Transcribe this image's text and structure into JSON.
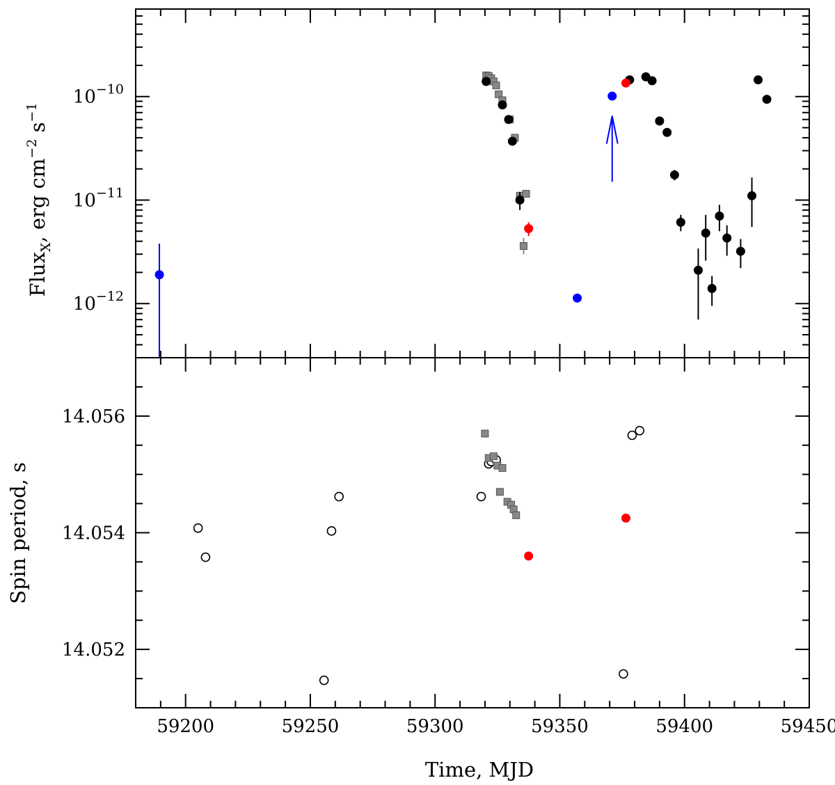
{
  "chart_data": {
    "type": "scatter",
    "x_axis": {
      "label": "Time, MJD",
      "range": [
        59180,
        59450
      ],
      "ticks": [
        59200,
        59250,
        59300,
        59350,
        59400,
        59450
      ],
      "tick_labels": [
        "59200",
        "59250",
        "59300",
        "59350",
        "59400",
        "59450"
      ]
    },
    "panels": [
      {
        "id": "flux",
        "ylabel": {
          "main": "Flux",
          "sub": "X",
          "rest": ", erg cm",
          "sup1": "−2",
          "mid": " s",
          "sup2": "−1"
        },
        "y_scale": "log",
        "y_range": [
          3e-13,
          7e-10
        ],
        "y_ticks": [
          1e-12,
          1e-11,
          1e-10
        ],
        "y_tick_labels": [
          {
            "base": "10",
            "exp": "−12"
          },
          {
            "base": "10",
            "exp": "−11"
          },
          {
            "base": "10",
            "exp": "−10"
          }
        ],
        "series": [
          {
            "marker": "square",
            "color": "#888888",
            "points": [
              {
                "x": 59320.5,
                "y": 1.6e-10
              },
              {
                "x": 59321.5,
                "y": 1.58e-10
              },
              {
                "x": 59322.5,
                "y": 1.5e-10
              },
              {
                "x": 59323.5,
                "y": 1.4e-10
              },
              {
                "x": 59324.5,
                "y": 1.28e-10
              },
              {
                "x": 59325.5,
                "y": 1.05e-10
              },
              {
                "x": 59327,
                "y": 9.2e-11
              },
              {
                "x": 59330,
                "y": 6e-11
              },
              {
                "x": 59332,
                "y": 4e-11
              },
              {
                "x": 59334,
                "y": 1.1e-11
              },
              {
                "x": 59336.5,
                "y": 1.15e-11
              },
              {
                "x": 59335.5,
                "y": 3.6e-12,
                "yerr": [
                  3e-12,
                  4.3e-12
                ]
              }
            ]
          },
          {
            "marker": "circle",
            "color": "#000000",
            "points": [
              {
                "x": 59320.5,
                "y": 1.4e-10
              },
              {
                "x": 59327,
                "y": 8.3e-11
              },
              {
                "x": 59329.5,
                "y": 6e-11
              },
              {
                "x": 59331,
                "y": 3.7e-11
              },
              {
                "x": 59334,
                "y": 1e-11,
                "yerr": [
                  8e-12,
                  1.2e-11
                ]
              },
              {
                "x": 59378,
                "y": 1.45e-10
              },
              {
                "x": 59384.5,
                "y": 1.55e-10
              },
              {
                "x": 59387,
                "y": 1.42e-10
              },
              {
                "x": 59390,
                "y": 5.8e-11
              },
              {
                "x": 59393,
                "y": 4.5e-11
              },
              {
                "x": 59396,
                "y": 1.75e-11,
                "yerr": [
                  1.55e-11,
                  1.95e-11
                ]
              },
              {
                "x": 59398.5,
                "y": 6.1e-12,
                "yerr": [
                  5e-12,
                  7.2e-12
                ]
              },
              {
                "x": 59405.5,
                "y": 2.1e-12,
                "yerr": [
                  7e-13,
                  3.4e-12
                ]
              },
              {
                "x": 59408.5,
                "y": 4.8e-12,
                "yerr": [
                  2.6e-12,
                  7.2e-12
                ]
              },
              {
                "x": 59411,
                "y": 1.4e-12,
                "yerr": [
                  9.5e-13,
                  1.85e-12
                ]
              },
              {
                "x": 59414,
                "y": 7e-12,
                "yerr": [
                  5e-12,
                  9e-12
                ]
              },
              {
                "x": 59417,
                "y": 4.3e-12,
                "yerr": [
                  2.9e-12,
                  5.7e-12
                ]
              },
              {
                "x": 59422.5,
                "y": 3.2e-12,
                "yerr": [
                  2.2e-12,
                  4.2e-12
                ]
              },
              {
                "x": 59427,
                "y": 1.1e-11,
                "yerr": [
                  5.5e-12,
                  1.65e-11
                ]
              },
              {
                "x": 59429.5,
                "y": 1.45e-10
              },
              {
                "x": 59433,
                "y": 9.4e-11
              }
            ]
          },
          {
            "marker": "circle",
            "color": "#ff0000",
            "points": [
              {
                "x": 59337.5,
                "y": 5.3e-12,
                "yerr": [
                  4.5e-12,
                  6.1e-12
                ]
              },
              {
                "x": 59376.5,
                "y": 1.35e-10
              }
            ]
          },
          {
            "marker": "circle",
            "color": "#0000ff",
            "points": [
              {
                "x": 59189.5,
                "y": 1.9e-12,
                "yerr": [
                  3e-13,
                  3.8e-12
                ]
              },
              {
                "x": 59357,
                "y": 1.13e-12
              },
              {
                "x": 59371,
                "y": 1.01e-10
              }
            ]
          }
        ],
        "arrows": [
          {
            "x": 59371,
            "from_y": 1.5e-11,
            "to_y": 6.5e-11,
            "color": "#0000ff"
          }
        ]
      },
      {
        "id": "spin",
        "ylabel": {
          "main": "Spin period, s"
        },
        "y_scale": "linear",
        "y_range": [
          14.051,
          14.057
        ],
        "y_ticks": [
          14.052,
          14.054,
          14.056
        ],
        "y_tick_labels": [
          "14.052",
          "14.054",
          "14.056"
        ],
        "series": [
          {
            "marker": "open-circle",
            "color": "#000000",
            "points": [
              {
                "x": 59205,
                "y": 14.05408
              },
              {
                "x": 59208,
                "y": 14.05358
              },
              {
                "x": 59255.5,
                "y": 14.05147
              },
              {
                "x": 59258.5,
                "y": 14.05403
              },
              {
                "x": 59261.5,
                "y": 14.05462
              },
              {
                "x": 59318.5,
                "y": 14.05462
              },
              {
                "x": 59321.5,
                "y": 14.05518
              },
              {
                "x": 59322.5,
                "y": 14.05522
              },
              {
                "x": 59324.5,
                "y": 14.05525
              },
              {
                "x": 59375.5,
                "y": 14.05158
              },
              {
                "x": 59379,
                "y": 14.05567
              },
              {
                "x": 59382,
                "y": 14.05575
              }
            ]
          },
          {
            "marker": "square",
            "color": "#888888",
            "points": [
              {
                "x": 59320,
                "y": 14.0557
              },
              {
                "x": 59321.5,
                "y": 14.05528
              },
              {
                "x": 59323.5,
                "y": 14.05531
              },
              {
                "x": 59325,
                "y": 14.05515
              },
              {
                "x": 59327,
                "y": 14.05511
              },
              {
                "x": 59326,
                "y": 14.0547
              },
              {
                "x": 59329,
                "y": 14.05453
              },
              {
                "x": 59330.5,
                "y": 14.05448
              },
              {
                "x": 59331.5,
                "y": 14.0544
              },
              {
                "x": 59332.5,
                "y": 14.0543
              }
            ]
          },
          {
            "marker": "circle",
            "color": "#ff0000",
            "points": [
              {
                "x": 59337.5,
                "y": 14.0536
              },
              {
                "x": 59376.5,
                "y": 14.05425
              }
            ]
          }
        ]
      }
    ]
  }
}
